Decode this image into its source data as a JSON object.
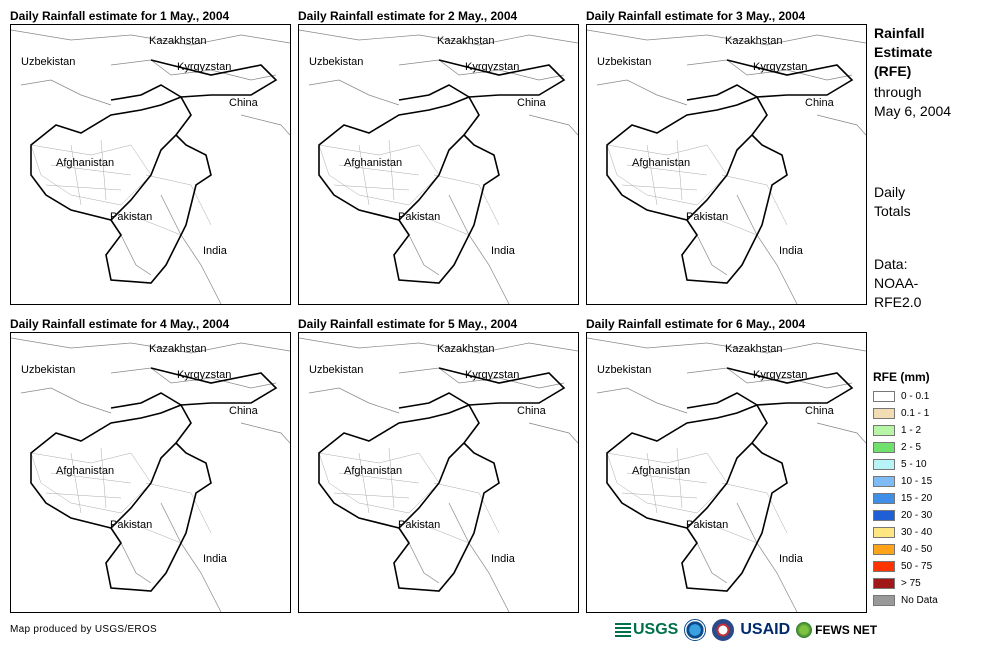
{
  "panels": [
    {
      "title": "Daily Rainfall estimate for 1 May., 2004"
    },
    {
      "title": "Daily Rainfall estimate for 2 May., 2004"
    },
    {
      "title": "Daily Rainfall estimate for 3 May., 2004"
    },
    {
      "title": "Daily Rainfall estimate for 4 May., 2004"
    },
    {
      "title": "Daily Rainfall estimate for 5 May., 2004"
    },
    {
      "title": "Daily Rainfall estimate for 6 May., 2004"
    }
  ],
  "countries": {
    "kazakhstan": "Kazakhstan",
    "uzbekistan": "Uzbekistan",
    "kyrgyzstan": "Kyrgyzstan",
    "china": "China",
    "afghanistan": "Afghanistan",
    "pakistan": "Pakistan",
    "india": "India"
  },
  "side": {
    "title_lines": [
      "Rainfall",
      "Estimate",
      "(RFE)"
    ],
    "through_lines": [
      "through",
      "May 6, 2004"
    ],
    "totals_lines": [
      "Daily",
      "Totals"
    ],
    "data_lines": [
      "Data:",
      "NOAA-",
      "RFE2.0"
    ]
  },
  "legend": {
    "title": "RFE (mm)",
    "items": [
      {
        "label": "0 - 0.1",
        "color": "#ffffff"
      },
      {
        "label": "0.1 - 1",
        "color": "#f2dcb4"
      },
      {
        "label": "1 - 2",
        "color": "#b5f5a5"
      },
      {
        "label": "2 - 5",
        "color": "#6fe06c"
      },
      {
        "label": "5 - 10",
        "color": "#b8f4f6"
      },
      {
        "label": "10 - 15",
        "color": "#7fbcf5"
      },
      {
        "label": "15 - 20",
        "color": "#3f8fe8"
      },
      {
        "label": "20 - 30",
        "color": "#1f5fd6"
      },
      {
        "label": "30 - 40",
        "color": "#ffe680"
      },
      {
        "label": "40 - 50",
        "color": "#ffa31a"
      },
      {
        "label": "50 - 75",
        "color": "#ff3300"
      },
      {
        "label": "> 75",
        "color": "#a01818"
      },
      {
        "label": "No Data",
        "color": "#999999"
      }
    ]
  },
  "credit": "Map produced by USGS/EROS",
  "logos": {
    "usgs": "USGS",
    "usaid": "USAID",
    "fews": "FEWS NET"
  }
}
